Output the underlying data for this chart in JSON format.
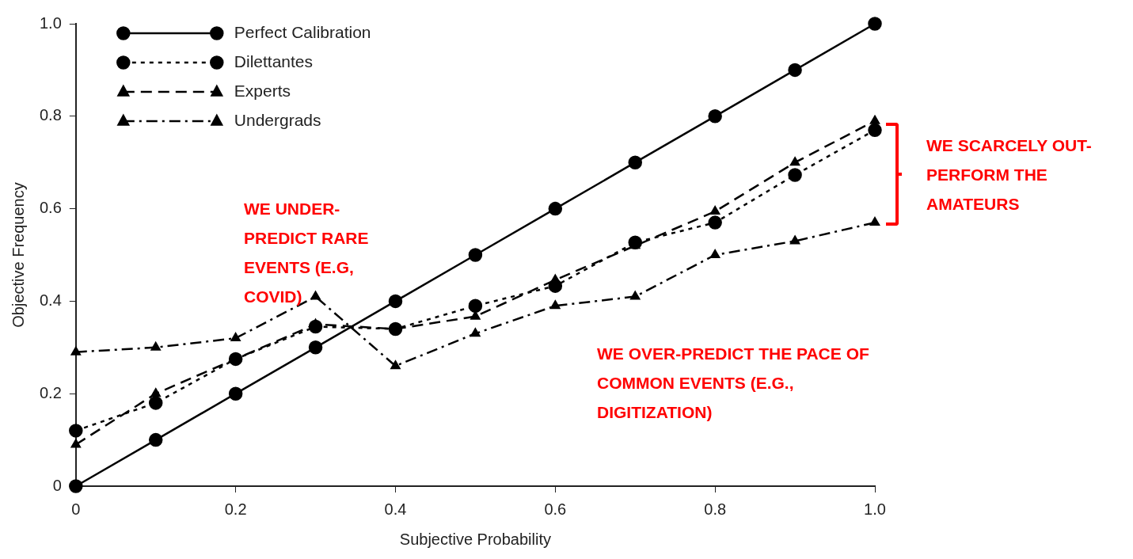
{
  "chart_data": {
    "type": "line",
    "xlabel": "Subjective Probability",
    "ylabel": "Objective Frequency",
    "x": [
      0,
      0.1,
      0.2,
      0.3,
      0.4,
      0.5,
      0.6,
      0.7,
      0.8,
      0.9,
      1
    ],
    "xlim": [
      0,
      1
    ],
    "xticks": [
      0,
      0.2,
      0.4,
      0.6,
      0.8,
      {
        "value": 1,
        "label": "1.0"
      }
    ],
    "ylim": [
      0,
      1
    ],
    "yticks": [
      0,
      0.2,
      0.4,
      0.6,
      0.8,
      {
        "value": 1,
        "label": "1.0"
      }
    ],
    "grid": false,
    "legend": "top left",
    "series": [
      {
        "name": "Perfect Calibration",
        "color": "#000000",
        "marker": "circle",
        "line_style": "solid",
        "values": [
          0,
          0.1,
          0.2,
          0.3,
          0.4,
          0.5,
          0.6,
          0.7,
          0.8,
          0.9,
          1
        ]
      },
      {
        "name": "Dilettantes",
        "color": "#000000",
        "marker": "circle",
        "line_style": "dotted",
        "values": [
          0.12,
          0.18,
          0.275,
          0.345,
          0.34,
          0.39,
          0.433,
          0.527,
          0.57,
          0.673,
          0.77
        ]
      },
      {
        "name": "Experts",
        "color": "#000000",
        "marker": "triangle",
        "line_style": "dashed",
        "values": [
          0.09,
          0.2,
          0.275,
          0.35,
          0.34,
          0.367,
          0.446,
          0.52,
          0.594,
          0.7,
          0.79
        ]
      },
      {
        "name": "Undergrads",
        "color": "#000000",
        "marker": "triangle",
        "line_style": "dashdot",
        "values": [
          0.29,
          0.3,
          0.32,
          0.41,
          0.26,
          0.33,
          0.39,
          0.41,
          0.5,
          0.53,
          0.57
        ]
      }
    ],
    "annotations": [
      "WE UNDER-PREDICT RARE EVENTS (E.G, COVID)",
      "WE OVER-PREDICT THE PACE OF COMMON EVENTS (E.G., DIGITIZATION)",
      "WE SCARCELY OUT-PERFORM THE AMATEURS"
    ]
  }
}
